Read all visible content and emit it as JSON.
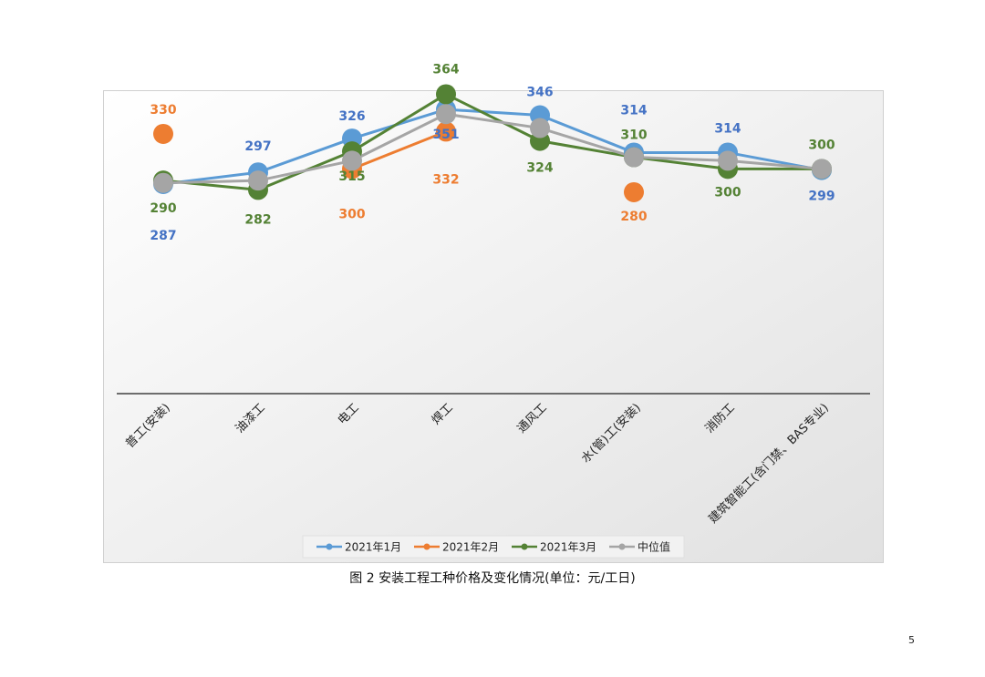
{
  "chart_data": {
    "type": "line",
    "categories": [
      "普工(安装)",
      "油漆工",
      "电工",
      "焊工",
      "通风工",
      "水(管)工(安装)",
      "消防工",
      "建筑智能工(含门禁、BAS专业)"
    ],
    "series": [
      {
        "name": "2021年1月",
        "color": "#5b9bd5",
        "label_color": "#4472c4",
        "values": [
          287,
          297,
          326,
          351,
          346,
          314,
          314,
          299
        ]
      },
      {
        "name": "2021年2月",
        "color": "#ed7d31",
        "label_color": "#ed7d31",
        "values": [
          330,
          null,
          300,
          332,
          null,
          280,
          null,
          null
        ]
      },
      {
        "name": "2021年3月",
        "color": "#548235",
        "label_color": "#548235",
        "values": [
          290,
          282,
          315,
          364,
          324,
          310,
          300,
          300
        ]
      },
      {
        "name": "中位值",
        "color": "#a5a5a5",
        "label_color": "#a5a5a5",
        "values": [
          288,
          290,
          307,
          347,
          335,
          310,
          307,
          300
        ]
      }
    ],
    "grid": false,
    "legend_position": "bottom"
  },
  "caption": "图 2   安装工程工种价格及变化情况(单位：元/工日)",
  "page_number": "5"
}
